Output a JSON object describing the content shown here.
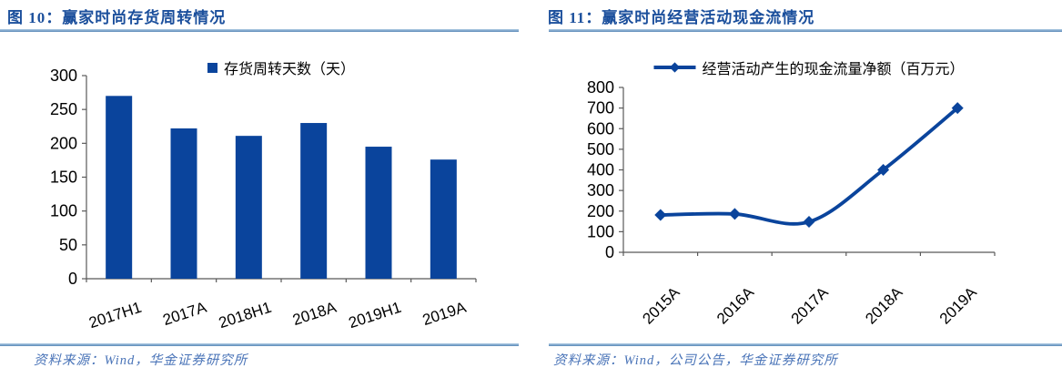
{
  "figures": [
    {
      "title": "图 10：赢家时尚存货周转情况",
      "source": "资料来源：Wind，华金证券研究所",
      "legend_label": "存货周转天数（天）",
      "chart_data": {
        "type": "bar",
        "title": "图 10：赢家时尚存货周转情况",
        "legend": [
          "存货周转天数（天）"
        ],
        "categories": [
          "2017H1",
          "2017A",
          "2018H1",
          "2018A",
          "2019H1",
          "2019A"
        ],
        "values": [
          270,
          222,
          211,
          230,
          195,
          176
        ],
        "xlabel": "",
        "ylabel": "",
        "ylim": [
          0,
          300
        ],
        "ytick_step": 50,
        "grid": false,
        "legend_position": "top",
        "bar_color": "#0A449C"
      }
    },
    {
      "title": "图 11：赢家时尚经营活动现金流情况",
      "source": "资料来源：Wind，公司公告，华金证券研究所",
      "legend_label": "经营活动产生的现金流量净额（百万元）",
      "chart_data": {
        "type": "line",
        "title": "图 11：赢家时尚经营活动现金流情况",
        "legend": [
          "经营活动产生的现金流量净额（百万元）"
        ],
        "categories": [
          "2015A",
          "2016A",
          "2017A",
          "2018A",
          "2019A"
        ],
        "values": [
          181,
          186,
          148,
          400,
          700
        ],
        "xlabel": "",
        "ylabel": "",
        "ylim": [
          0,
          800
        ],
        "ytick_step": 100,
        "grid": false,
        "legend_position": "top",
        "smooth": true,
        "marker": "diamond",
        "line_color": "#0A449C"
      }
    }
  ],
  "colors": {
    "accent": "#0A449C",
    "title_text": "#1B4F9C",
    "source_text": "#4A74B8",
    "divider_top": "#AFCBE3",
    "divider_bottom": "#5A89B8",
    "axis": "#595959",
    "tick_label": "#000000"
  }
}
